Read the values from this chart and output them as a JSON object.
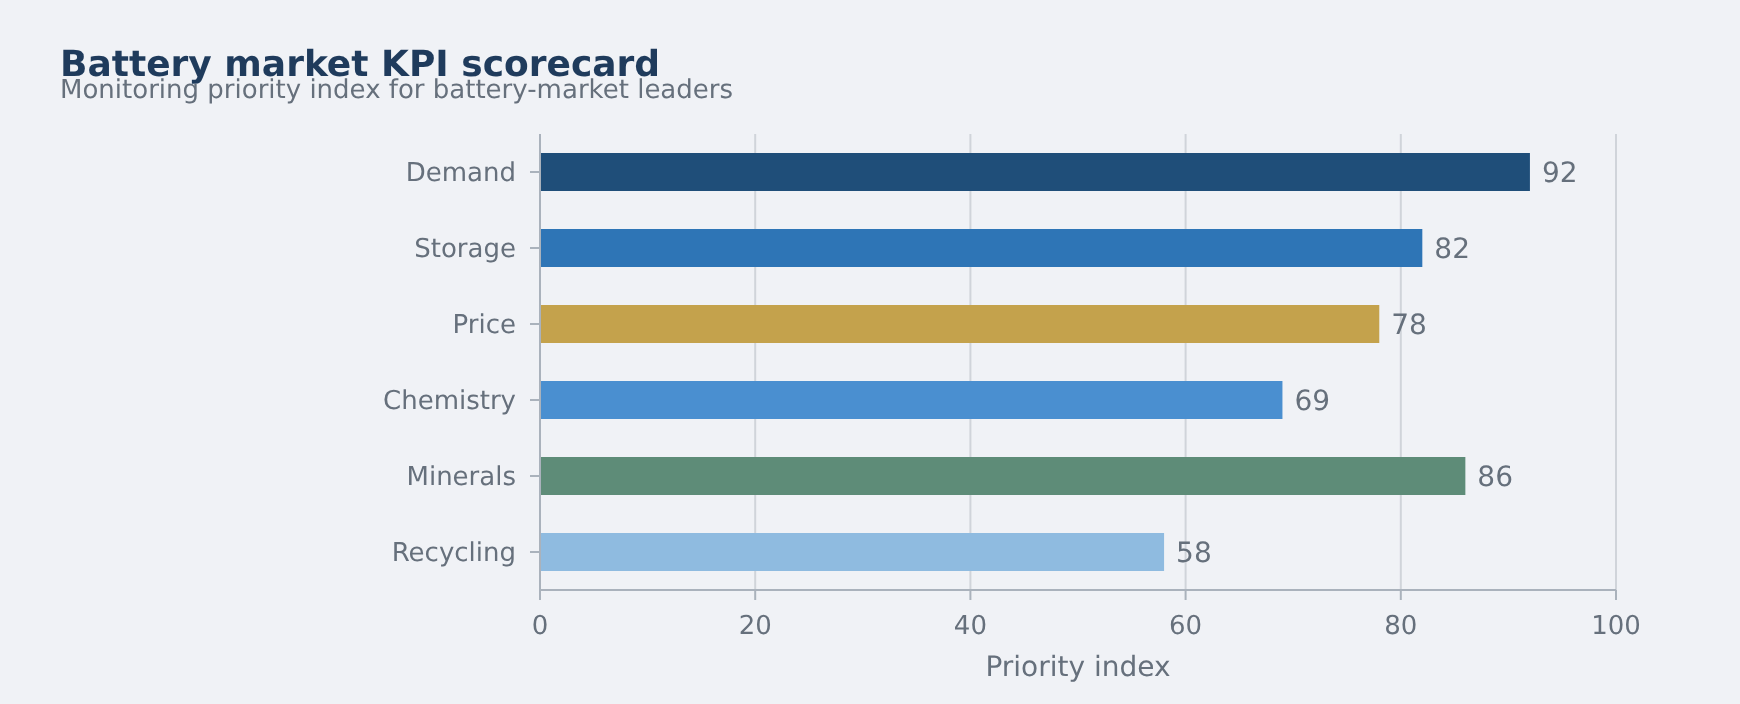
{
  "chart_data": {
    "type": "bar",
    "orientation": "horizontal",
    "title": "Battery market KPI scorecard",
    "subtitle": "Monitoring priority index for battery-market leaders",
    "xlabel": "Priority index",
    "categories": [
      "Demand",
      "Storage",
      "Price",
      "Chemistry",
      "Minerals",
      "Recycling"
    ],
    "values": [
      92,
      82,
      78,
      69,
      86,
      58
    ],
    "colors": [
      "#1f4e79",
      "#2e75b6",
      "#c4a24c",
      "#4a8fd0",
      "#5e8c78",
      "#8fbbe0"
    ],
    "xlim": [
      0,
      100
    ],
    "xticks": [
      0,
      20,
      40,
      60,
      80,
      100
    ],
    "grid": "x",
    "data_labels": true
  }
}
